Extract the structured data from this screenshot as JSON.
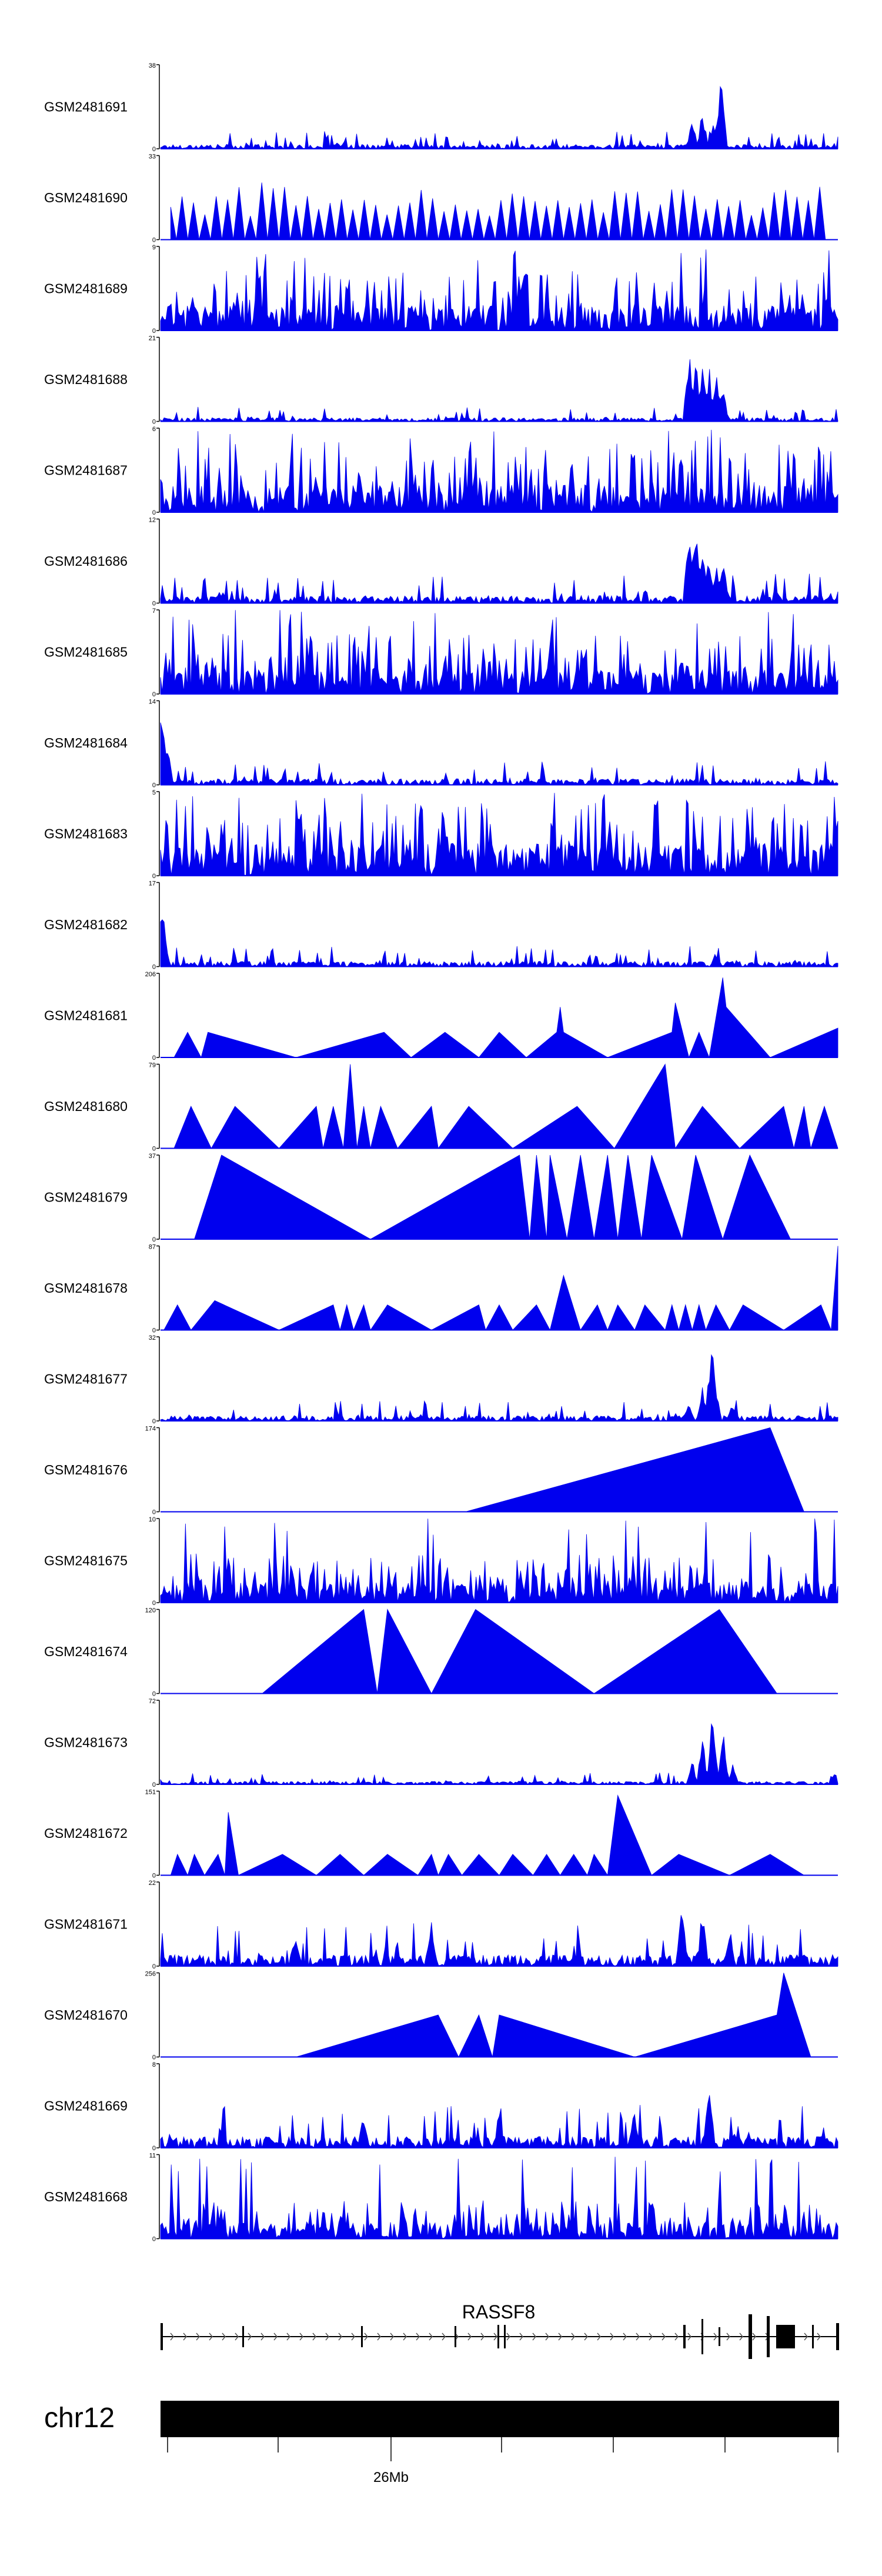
{
  "chart_data": {
    "type": "area",
    "color": "#0000ee",
    "axis_color": "#000000",
    "tracks": [
      {
        "name": "GSM2481691",
        "ymax": 38,
        "ymin": 0,
        "pattern": "peaky",
        "baseline": 0.06,
        "peaks": [
          [
            0.785,
            0.4
          ],
          [
            0.8,
            0.5
          ],
          [
            0.815,
            0.35
          ],
          [
            0.825,
            0.65
          ],
          [
            0.828,
            1.0
          ]
        ]
      },
      {
        "name": "GSM2481690",
        "ymax": 33,
        "ymin": 0,
        "pattern": "spiky_tri",
        "count": 58
      },
      {
        "name": "GSM2481689",
        "ymax": 9,
        "ymin": 0,
        "pattern": "dense",
        "level": 0.55
      },
      {
        "name": "GSM2481688",
        "ymax": 21,
        "ymin": 0,
        "pattern": "peaky",
        "baseline": 0.05,
        "peaks": [
          [
            0.78,
            0.9
          ],
          [
            0.79,
            1.0
          ],
          [
            0.8,
            0.85
          ],
          [
            0.81,
            0.7
          ],
          [
            0.82,
            0.6
          ],
          [
            0.83,
            0.55
          ]
        ]
      },
      {
        "name": "GSM2481687",
        "ymax": 6,
        "ymin": 0,
        "pattern": "dense",
        "level": 0.6
      },
      {
        "name": "GSM2481686",
        "ymax": 12,
        "ymin": 0,
        "pattern": "peaky",
        "baseline": 0.1,
        "peaks": [
          [
            0.78,
            0.9
          ],
          [
            0.79,
            1.0
          ],
          [
            0.8,
            0.8
          ],
          [
            0.81,
            0.7
          ],
          [
            0.82,
            0.5
          ],
          [
            0.83,
            0.6
          ]
        ]
      },
      {
        "name": "GSM2481685",
        "ymax": 7,
        "ymin": 0,
        "pattern": "dense",
        "level": 0.55
      },
      {
        "name": "GSM2481684",
        "ymax": 14,
        "ymin": 0,
        "pattern": "peaky",
        "baseline": 0.08,
        "peaks": [
          [
            0.002,
            1.0
          ],
          [
            0.006,
            0.75
          ],
          [
            0.01,
            0.5
          ]
        ]
      },
      {
        "name": "GSM2481683",
        "ymax": 5,
        "ymin": 0,
        "pattern": "dense",
        "level": 0.7
      },
      {
        "name": "GSM2481682",
        "ymax": 17,
        "ymin": 0,
        "pattern": "peaky",
        "baseline": 0.07,
        "peaks": [
          [
            0.002,
            1.0
          ],
          [
            0.006,
            0.4
          ],
          [
            0.82,
            0.2
          ]
        ]
      },
      {
        "name": "GSM2481681",
        "ymax": 206,
        "ymin": 0,
        "pattern": "tri",
        "points": [
          [
            0.02,
            0
          ],
          [
            0.04,
            0.3
          ],
          [
            0.06,
            0
          ],
          [
            0.07,
            0.3
          ],
          [
            0.2,
            0
          ],
          [
            0.33,
            0.3
          ],
          [
            0.37,
            0
          ],
          [
            0.42,
            0.3
          ],
          [
            0.47,
            0
          ],
          [
            0.5,
            0.3
          ],
          [
            0.54,
            0
          ],
          [
            0.585,
            0.3
          ],
          [
            0.59,
            0.6
          ],
          [
            0.595,
            0.3
          ],
          [
            0.66,
            0
          ],
          [
            0.755,
            0.3
          ],
          [
            0.76,
            0.65
          ],
          [
            0.78,
            0
          ],
          [
            0.795,
            0.3
          ],
          [
            0.81,
            0
          ],
          [
            0.83,
            0.95
          ],
          [
            0.835,
            0.6
          ],
          [
            0.9,
            0
          ],
          [
            1.0,
            0.35
          ]
        ]
      },
      {
        "name": "GSM2481680",
        "ymax": 79,
        "ymin": 0,
        "pattern": "tri",
        "points": [
          [
            0.02,
            0
          ],
          [
            0.045,
            0.5
          ],
          [
            0.075,
            0
          ],
          [
            0.11,
            0.5
          ],
          [
            0.175,
            0
          ],
          [
            0.23,
            0.5
          ],
          [
            0.24,
            0
          ],
          [
            0.255,
            0.5
          ],
          [
            0.27,
            0
          ],
          [
            0.28,
            1.0
          ],
          [
            0.29,
            0
          ],
          [
            0.3,
            0.5
          ],
          [
            0.31,
            0
          ],
          [
            0.325,
            0.5
          ],
          [
            0.35,
            0
          ],
          [
            0.4,
            0.5
          ],
          [
            0.41,
            0
          ],
          [
            0.455,
            0.5
          ],
          [
            0.52,
            0
          ],
          [
            0.615,
            0.5
          ],
          [
            0.67,
            0
          ],
          [
            0.745,
            1.0
          ],
          [
            0.76,
            0
          ],
          [
            0.8,
            0.5
          ],
          [
            0.855,
            0
          ],
          [
            0.92,
            0.5
          ],
          [
            0.935,
            0
          ],
          [
            0.95,
            0.5
          ],
          [
            0.96,
            0
          ],
          [
            0.98,
            0.5
          ],
          [
            1.0,
            0
          ]
        ]
      },
      {
        "name": "GSM2481679",
        "ymax": 37,
        "ymin": 0,
        "pattern": "tri",
        "points": [
          [
            0.05,
            0
          ],
          [
            0.09,
            1.0
          ],
          [
            0.31,
            0
          ],
          [
            0.53,
            1.0
          ],
          [
            0.545,
            0
          ],
          [
            0.555,
            1.0
          ],
          [
            0.57,
            0
          ],
          [
            0.575,
            1.0
          ],
          [
            0.6,
            0
          ],
          [
            0.62,
            1.0
          ],
          [
            0.64,
            0
          ],
          [
            0.66,
            1.0
          ],
          [
            0.675,
            0
          ],
          [
            0.69,
            1.0
          ],
          [
            0.71,
            0
          ],
          [
            0.725,
            1.0
          ],
          [
            0.77,
            0
          ],
          [
            0.79,
            1.0
          ],
          [
            0.83,
            0
          ],
          [
            0.87,
            1.0
          ],
          [
            0.93,
            0
          ]
        ]
      },
      {
        "name": "GSM2481678",
        "ymax": 87,
        "ymin": 0,
        "pattern": "tri",
        "points": [
          [
            0.005,
            0
          ],
          [
            0.025,
            0.3
          ],
          [
            0.045,
            0
          ],
          [
            0.08,
            0.35
          ],
          [
            0.175,
            0
          ],
          [
            0.255,
            0.3
          ],
          [
            0.265,
            0
          ],
          [
            0.275,
            0.3
          ],
          [
            0.285,
            0
          ],
          [
            0.3,
            0.3
          ],
          [
            0.31,
            0
          ],
          [
            0.335,
            0.3
          ],
          [
            0.4,
            0
          ],
          [
            0.47,
            0.3
          ],
          [
            0.48,
            0
          ],
          [
            0.5,
            0.3
          ],
          [
            0.52,
            0
          ],
          [
            0.555,
            0.3
          ],
          [
            0.575,
            0
          ],
          [
            0.595,
            0.65
          ],
          [
            0.62,
            0
          ],
          [
            0.645,
            0.3
          ],
          [
            0.66,
            0
          ],
          [
            0.675,
            0.3
          ],
          [
            0.7,
            0
          ],
          [
            0.715,
            0.3
          ],
          [
            0.745,
            0
          ],
          [
            0.755,
            0.3
          ],
          [
            0.765,
            0
          ],
          [
            0.775,
            0.3
          ],
          [
            0.785,
            0
          ],
          [
            0.795,
            0.3
          ],
          [
            0.805,
            0
          ],
          [
            0.82,
            0.3
          ],
          [
            0.84,
            0
          ],
          [
            0.86,
            0.3
          ],
          [
            0.92,
            0
          ],
          [
            0.975,
            0.3
          ],
          [
            0.99,
            0
          ],
          [
            1.0,
            1.0
          ]
        ]
      },
      {
        "name": "GSM2481677",
        "ymax": 32,
        "ymin": 0,
        "pattern": "peaky",
        "baseline": 0.07,
        "peaks": [
          [
            0.78,
            0.3
          ],
          [
            0.8,
            0.5
          ],
          [
            0.81,
            0.6
          ],
          [
            0.82,
            0.45
          ],
          [
            0.815,
            1.0
          ],
          [
            0.845,
            0.25
          ]
        ]
      },
      {
        "name": "GSM2481676",
        "ymax": 174,
        "ymin": 0,
        "pattern": "tri",
        "points": [
          [
            0.45,
            0
          ],
          [
            0.9,
            1.0
          ],
          [
            0.95,
            0
          ]
        ]
      },
      {
        "name": "GSM2481675",
        "ymax": 10,
        "ymin": 0,
        "pattern": "dense",
        "level": 0.45
      },
      {
        "name": "GSM2481674",
        "ymax": 120,
        "ymin": 0,
        "pattern": "tri",
        "points": [
          [
            0.15,
            0
          ],
          [
            0.3,
            1.0
          ],
          [
            0.32,
            0
          ],
          [
            0.335,
            1.0
          ],
          [
            0.4,
            0
          ],
          [
            0.465,
            1.0
          ],
          [
            0.64,
            0
          ],
          [
            0.825,
            1.0
          ],
          [
            0.91,
            0
          ]
        ]
      },
      {
        "name": "GSM2481673",
        "ymax": 72,
        "ymin": 0,
        "pattern": "peaky",
        "baseline": 0.04,
        "peaks": [
          [
            0.785,
            0.3
          ],
          [
            0.8,
            0.6
          ],
          [
            0.815,
            0.95
          ],
          [
            0.83,
            0.7
          ],
          [
            0.845,
            0.25
          ]
        ]
      },
      {
        "name": "GSM2481672",
        "ymax": 151,
        "ymin": 0,
        "pattern": "tri",
        "points": [
          [
            0.015,
            0
          ],
          [
            0.025,
            0.25
          ],
          [
            0.04,
            0
          ],
          [
            0.05,
            0.25
          ],
          [
            0.065,
            0
          ],
          [
            0.085,
            0.25
          ],
          [
            0.095,
            0
          ],
          [
            0.1,
            0.75
          ],
          [
            0.115,
            0
          ],
          [
            0.18,
            0.25
          ],
          [
            0.23,
            0
          ],
          [
            0.265,
            0.25
          ],
          [
            0.3,
            0
          ],
          [
            0.335,
            0.25
          ],
          [
            0.38,
            0
          ],
          [
            0.4,
            0.25
          ],
          [
            0.41,
            0
          ],
          [
            0.425,
            0.25
          ],
          [
            0.445,
            0
          ],
          [
            0.47,
            0.25
          ],
          [
            0.5,
            0
          ],
          [
            0.52,
            0.25
          ],
          [
            0.55,
            0
          ],
          [
            0.57,
            0.25
          ],
          [
            0.59,
            0
          ],
          [
            0.61,
            0.25
          ],
          [
            0.63,
            0
          ],
          [
            0.64,
            0.25
          ],
          [
            0.66,
            0
          ],
          [
            0.675,
            0.95
          ],
          [
            0.725,
            0
          ],
          [
            0.765,
            0.25
          ],
          [
            0.84,
            0
          ],
          [
            0.9,
            0.25
          ],
          [
            0.95,
            0
          ]
        ]
      },
      {
        "name": "GSM2481671",
        "ymax": 22,
        "ymin": 0,
        "pattern": "peaky",
        "baseline": 0.15,
        "peaks": [
          [
            0.77,
            0.9
          ],
          [
            0.8,
            0.75
          ],
          [
            0.84,
            0.6
          ],
          [
            0.4,
            0.6
          ],
          [
            0.2,
            0.5
          ]
        ]
      },
      {
        "name": "GSM2481670",
        "ymax": 256,
        "ymin": 0,
        "pattern": "tri",
        "points": [
          [
            0.2,
            0
          ],
          [
            0.41,
            0.5
          ],
          [
            0.44,
            0
          ],
          [
            0.47,
            0.5
          ],
          [
            0.49,
            0
          ],
          [
            0.5,
            0.5
          ],
          [
            0.7,
            0
          ],
          [
            0.91,
            0.5
          ],
          [
            0.92,
            1.0
          ],
          [
            0.96,
            0
          ]
        ]
      },
      {
        "name": "GSM2481669",
        "ymax": 8,
        "ymin": 0,
        "pattern": "peaky",
        "baseline": 0.15,
        "peaks": [
          [
            0.81,
            0.95
          ],
          [
            0.7,
            0.5
          ],
          [
            0.5,
            0.5
          ],
          [
            0.3,
            0.45
          ]
        ]
      },
      {
        "name": "GSM2481668",
        "ymax": 11,
        "ymin": 0,
        "pattern": "dense",
        "level": 0.35
      }
    ],
    "gene": {
      "name": "RASSF8"
    },
    "chromosome": {
      "label": "chr12",
      "tick_label": "26Mb"
    }
  }
}
